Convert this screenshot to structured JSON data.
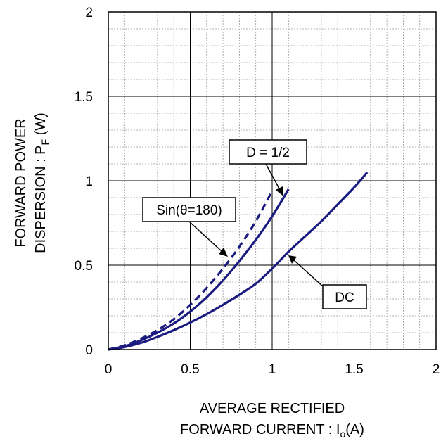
{
  "chart_data": {
    "type": "line",
    "xlabel_line1": "AVERAGE RECTIFIED",
    "xlabel_line2": "FORWARD CURRENT : I",
    "xlabel_sub": "o",
    "xlabel_unit": "(A)",
    "ylabel_line1": "FORWARD POWER",
    "ylabel_line2": "DISPERSION : P",
    "ylabel_sub": "F",
    "ylabel_unit": " (W)",
    "xlim": [
      0,
      2
    ],
    "ylim": [
      0,
      2
    ],
    "xticks": [
      0,
      0.5,
      1,
      1.5,
      2
    ],
    "yticks": [
      0,
      0.5,
      1,
      1.5,
      2
    ],
    "xtick_labels": [
      "0",
      "0.5",
      "1",
      "1.5",
      "2"
    ],
    "ytick_labels": [
      "0",
      "0.5",
      "1",
      "1.5",
      "2"
    ],
    "grid": true,
    "series": [
      {
        "name": "D = 1/2",
        "style": "solid",
        "color": "#1a1a80",
        "x": [
          0,
          0.1,
          0.2,
          0.3,
          0.4,
          0.5,
          0.6,
          0.7,
          0.8,
          0.9,
          1.0,
          1.1
        ],
        "y": [
          0,
          0.02,
          0.055,
          0.1,
          0.155,
          0.225,
          0.31,
          0.41,
          0.525,
          0.65,
          0.79,
          0.95
        ]
      },
      {
        "name": "Sin(θ=180)",
        "style": "dashed",
        "color": "#1a1a80",
        "x": [
          0,
          0.1,
          0.2,
          0.3,
          0.4,
          0.5,
          0.6,
          0.7,
          0.8,
          0.9,
          1.0
        ],
        "y": [
          0,
          0.025,
          0.065,
          0.115,
          0.18,
          0.265,
          0.365,
          0.48,
          0.61,
          0.76,
          0.94
        ]
      },
      {
        "name": "DC",
        "style": "solid",
        "color": "#1a1a80",
        "x": [
          0,
          0.1,
          0.2,
          0.3,
          0.4,
          0.5,
          0.6,
          0.7,
          0.8,
          0.9,
          1.0,
          1.1,
          1.2,
          1.3,
          1.4,
          1.5,
          1.58
        ],
        "y": [
          0,
          0.015,
          0.04,
          0.075,
          0.115,
          0.16,
          0.21,
          0.265,
          0.325,
          0.39,
          0.48,
          0.58,
          0.67,
          0.76,
          0.86,
          0.96,
          1.05
        ]
      }
    ],
    "annotations": [
      {
        "text": "D = 1/2"
      },
      {
        "text": "Sin(θ=180)"
      },
      {
        "text": "DC"
      }
    ]
  }
}
